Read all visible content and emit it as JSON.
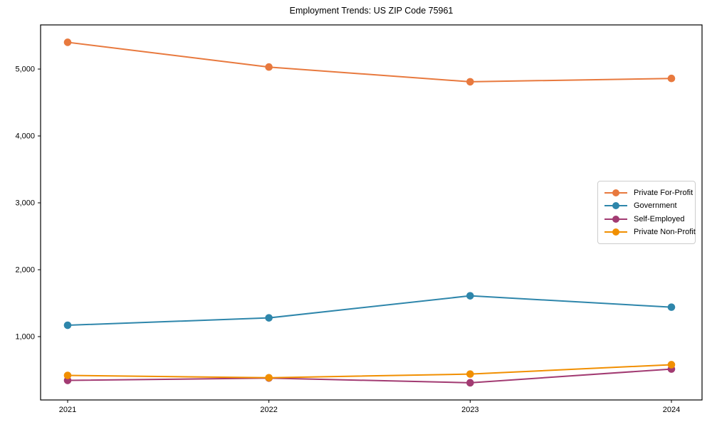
{
  "figure": {
    "title": "Employment Trends: US ZIP Code 75961"
  },
  "chart_data": {
    "type": "line",
    "title": "Employment Trends: US ZIP Code 75961",
    "xlabel": "",
    "ylabel": "",
    "grid": false,
    "legend_position": "center-right",
    "marker": "circle",
    "line_width": 2,
    "x": [
      2021,
      2022,
      2023,
      2024
    ],
    "x_labels": [
      "2021",
      "2022",
      "2023",
      "2024"
    ],
    "yticks": [
      1000,
      2000,
      3000,
      4000,
      5000
    ],
    "ytick_labels": [
      "1,000",
      "2,000",
      "3,000",
      "4,000",
      "5,000"
    ],
    "ylim": [
      53,
      5660
    ],
    "series": [
      {
        "name": "Private For-Profit",
        "color": "#E8793E",
        "values": [
          5400,
          5030,
          4810,
          4860
        ]
      },
      {
        "name": "Government",
        "color": "#2E86AB",
        "values": [
          1170,
          1280,
          1610,
          1440
        ]
      },
      {
        "name": "Self-Employed",
        "color": "#A23B72",
        "values": [
          345,
          380,
          310,
          515
        ]
      },
      {
        "name": "Private Non-Profit",
        "color": "#F18F01",
        "values": [
          420,
          385,
          440,
          580
        ]
      }
    ]
  }
}
